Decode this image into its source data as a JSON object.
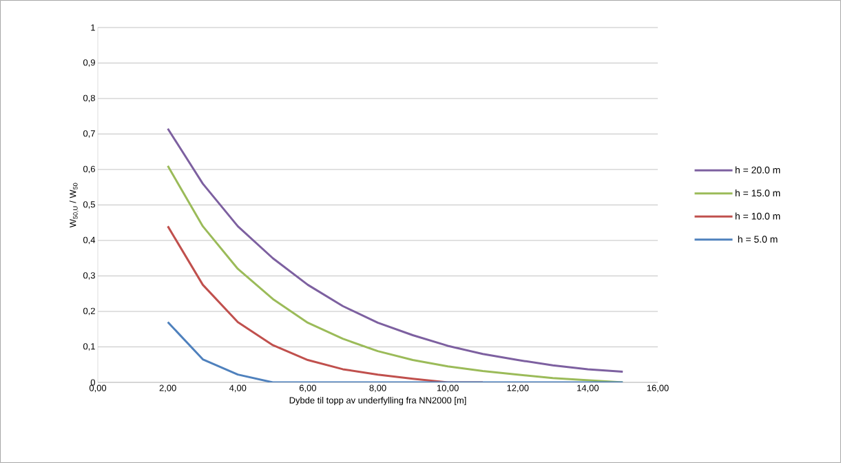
{
  "chart_data": {
    "type": "line",
    "xlabel": "Dybde til topp av underfylling fra NN2000 [m]",
    "ylabel": "W$_{50,U}$ / W$_{50}$",
    "x": [
      2,
      3,
      4,
      5,
      6,
      7,
      8,
      9,
      10,
      11,
      12,
      13,
      14,
      15
    ],
    "series": [
      {
        "name": "h = 20.0 m",
        "color": "#7d60a0",
        "values": [
          0.715,
          0.56,
          0.44,
          0.35,
          0.275,
          0.215,
          0.168,
          0.133,
          0.103,
          0.08,
          0.063,
          0.048,
          0.037,
          0.03
        ]
      },
      {
        "name": "h = 15.0 m",
        "color": "#9bbb59",
        "values": [
          0.61,
          0.44,
          0.32,
          0.235,
          0.168,
          0.123,
          0.088,
          0.063,
          0.045,
          0.032,
          0.022,
          0.012,
          0.006,
          0
        ]
      },
      {
        "name": "h = 10.0 m",
        "color": "#c0504d",
        "values": [
          0.44,
          0.275,
          0.17,
          0.105,
          0.063,
          0.037,
          0.022,
          0.01,
          0,
          0,
          null,
          null,
          null,
          null
        ]
      },
      {
        "name": "h = 5.0 m",
        "color": "#4f81bd",
        "values": [
          0.17,
          0.065,
          0.022,
          0,
          0,
          0,
          0,
          0,
          0,
          0,
          0,
          0,
          0,
          0
        ]
      }
    ],
    "xlim": [
      0,
      16
    ],
    "ylim": [
      0,
      1
    ],
    "xticks": [
      {
        "value": 0,
        "label": "0,00"
      },
      {
        "value": 2,
        "label": "2,00"
      },
      {
        "value": 4,
        "label": "4,00"
      },
      {
        "value": 6,
        "label": "6,00"
      },
      {
        "value": 8,
        "label": "8,00"
      },
      {
        "value": 10,
        "label": "10,00"
      },
      {
        "value": 12,
        "label": "12,00"
      },
      {
        "value": 14,
        "label": "14,00"
      },
      {
        "value": 16,
        "label": "16,00"
      }
    ],
    "yticks": [
      0,
      {
        "value": 0.1,
        "label": "0,1"
      },
      {
        "value": 0.2,
        "label": "0,2"
      },
      {
        "value": 0.3,
        "label": "0,3"
      },
      {
        "value": 0.4,
        "label": "0,4"
      },
      {
        "value": 0.5,
        "label": "0,5"
      },
      {
        "value": 0.6,
        "label": "0,6"
      },
      {
        "value": 0.7,
        "label": "0,7"
      },
      {
        "value": 0.8,
        "label": "0,8"
      },
      {
        "value": 0.9,
        "label": "0,9"
      },
      1
    ],
    "grid": "y",
    "legend": "right",
    "marker": "none",
    "line_style": "solid"
  }
}
